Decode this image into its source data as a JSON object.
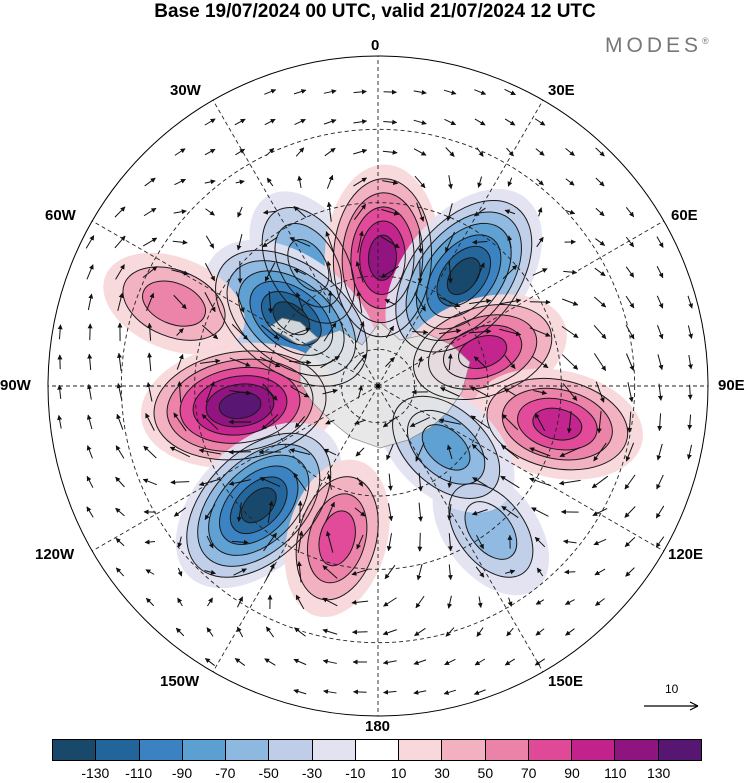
{
  "title": "Base 19/07/2024 00 UTC, valid 21/07/2024 12 UTC",
  "brand": {
    "name": "MODES",
    "mark": "®"
  },
  "longitude_labels": {
    "top": "0",
    "right": "90E",
    "bottom": "180",
    "left": "90W",
    "ne1": "30E",
    "ne2": "60E",
    "se1": "120E",
    "se2": "150E",
    "sw1": "150W",
    "sw2": "120W",
    "nw1": "60W",
    "nw2": "30W"
  },
  "reference_vector": {
    "label": "10"
  },
  "colorbar": {
    "colors": [
      "#18486a",
      "#22659b",
      "#3a82c2",
      "#5c9fd1",
      "#8db8e0",
      "#bfcde8",
      "#e2e2f0",
      "#ffffff",
      "#f8d8da",
      "#f2b0c0",
      "#eb82a8",
      "#e04898",
      "#c2228c",
      "#8e1480",
      "#561672"
    ],
    "ticks": [
      "-130",
      "-110",
      "-90",
      "-70",
      "-50",
      "-30",
      "-10",
      "10",
      "30",
      "50",
      "70",
      "90",
      "110",
      "130"
    ]
  },
  "anomaly_field": {
    "units_hint": "contour intervals per colorbar",
    "centers": [
      {
        "name": "negative-center-north",
        "lon": 330,
        "lat": 52,
        "value": -70
      },
      {
        "name": "positive-center-greenwich",
        "lon": 2,
        "lat": 55,
        "value": 110
      },
      {
        "name": "negative-center-east",
        "lon": 38,
        "lat": 52,
        "value": -130
      },
      {
        "name": "negative-center-west",
        "lon": 308,
        "lat": 60,
        "value": -130
      },
      {
        "name": "positive-center-nw",
        "lon": 292,
        "lat": 30,
        "value": 50
      },
      {
        "name": "positive-center-90w",
        "lon": 262,
        "lat": 52,
        "value": 130
      },
      {
        "name": "positive-center-70e",
        "lon": 72,
        "lat": 60,
        "value": 90
      },
      {
        "name": "positive-center-100e",
        "lon": 102,
        "lat": 40,
        "value": 90
      },
      {
        "name": "negative-center-sw",
        "lon": 225,
        "lat": 44,
        "value": -130
      },
      {
        "name": "positive-center-160w",
        "lon": 195,
        "lat": 47,
        "value": 70
      },
      {
        "name": "negative-center-140e",
        "lon": 142,
        "lat": 40,
        "value": -50
      },
      {
        "name": "negative-center-135e",
        "lon": 132,
        "lat": 65,
        "value": -70
      }
    ]
  }
}
